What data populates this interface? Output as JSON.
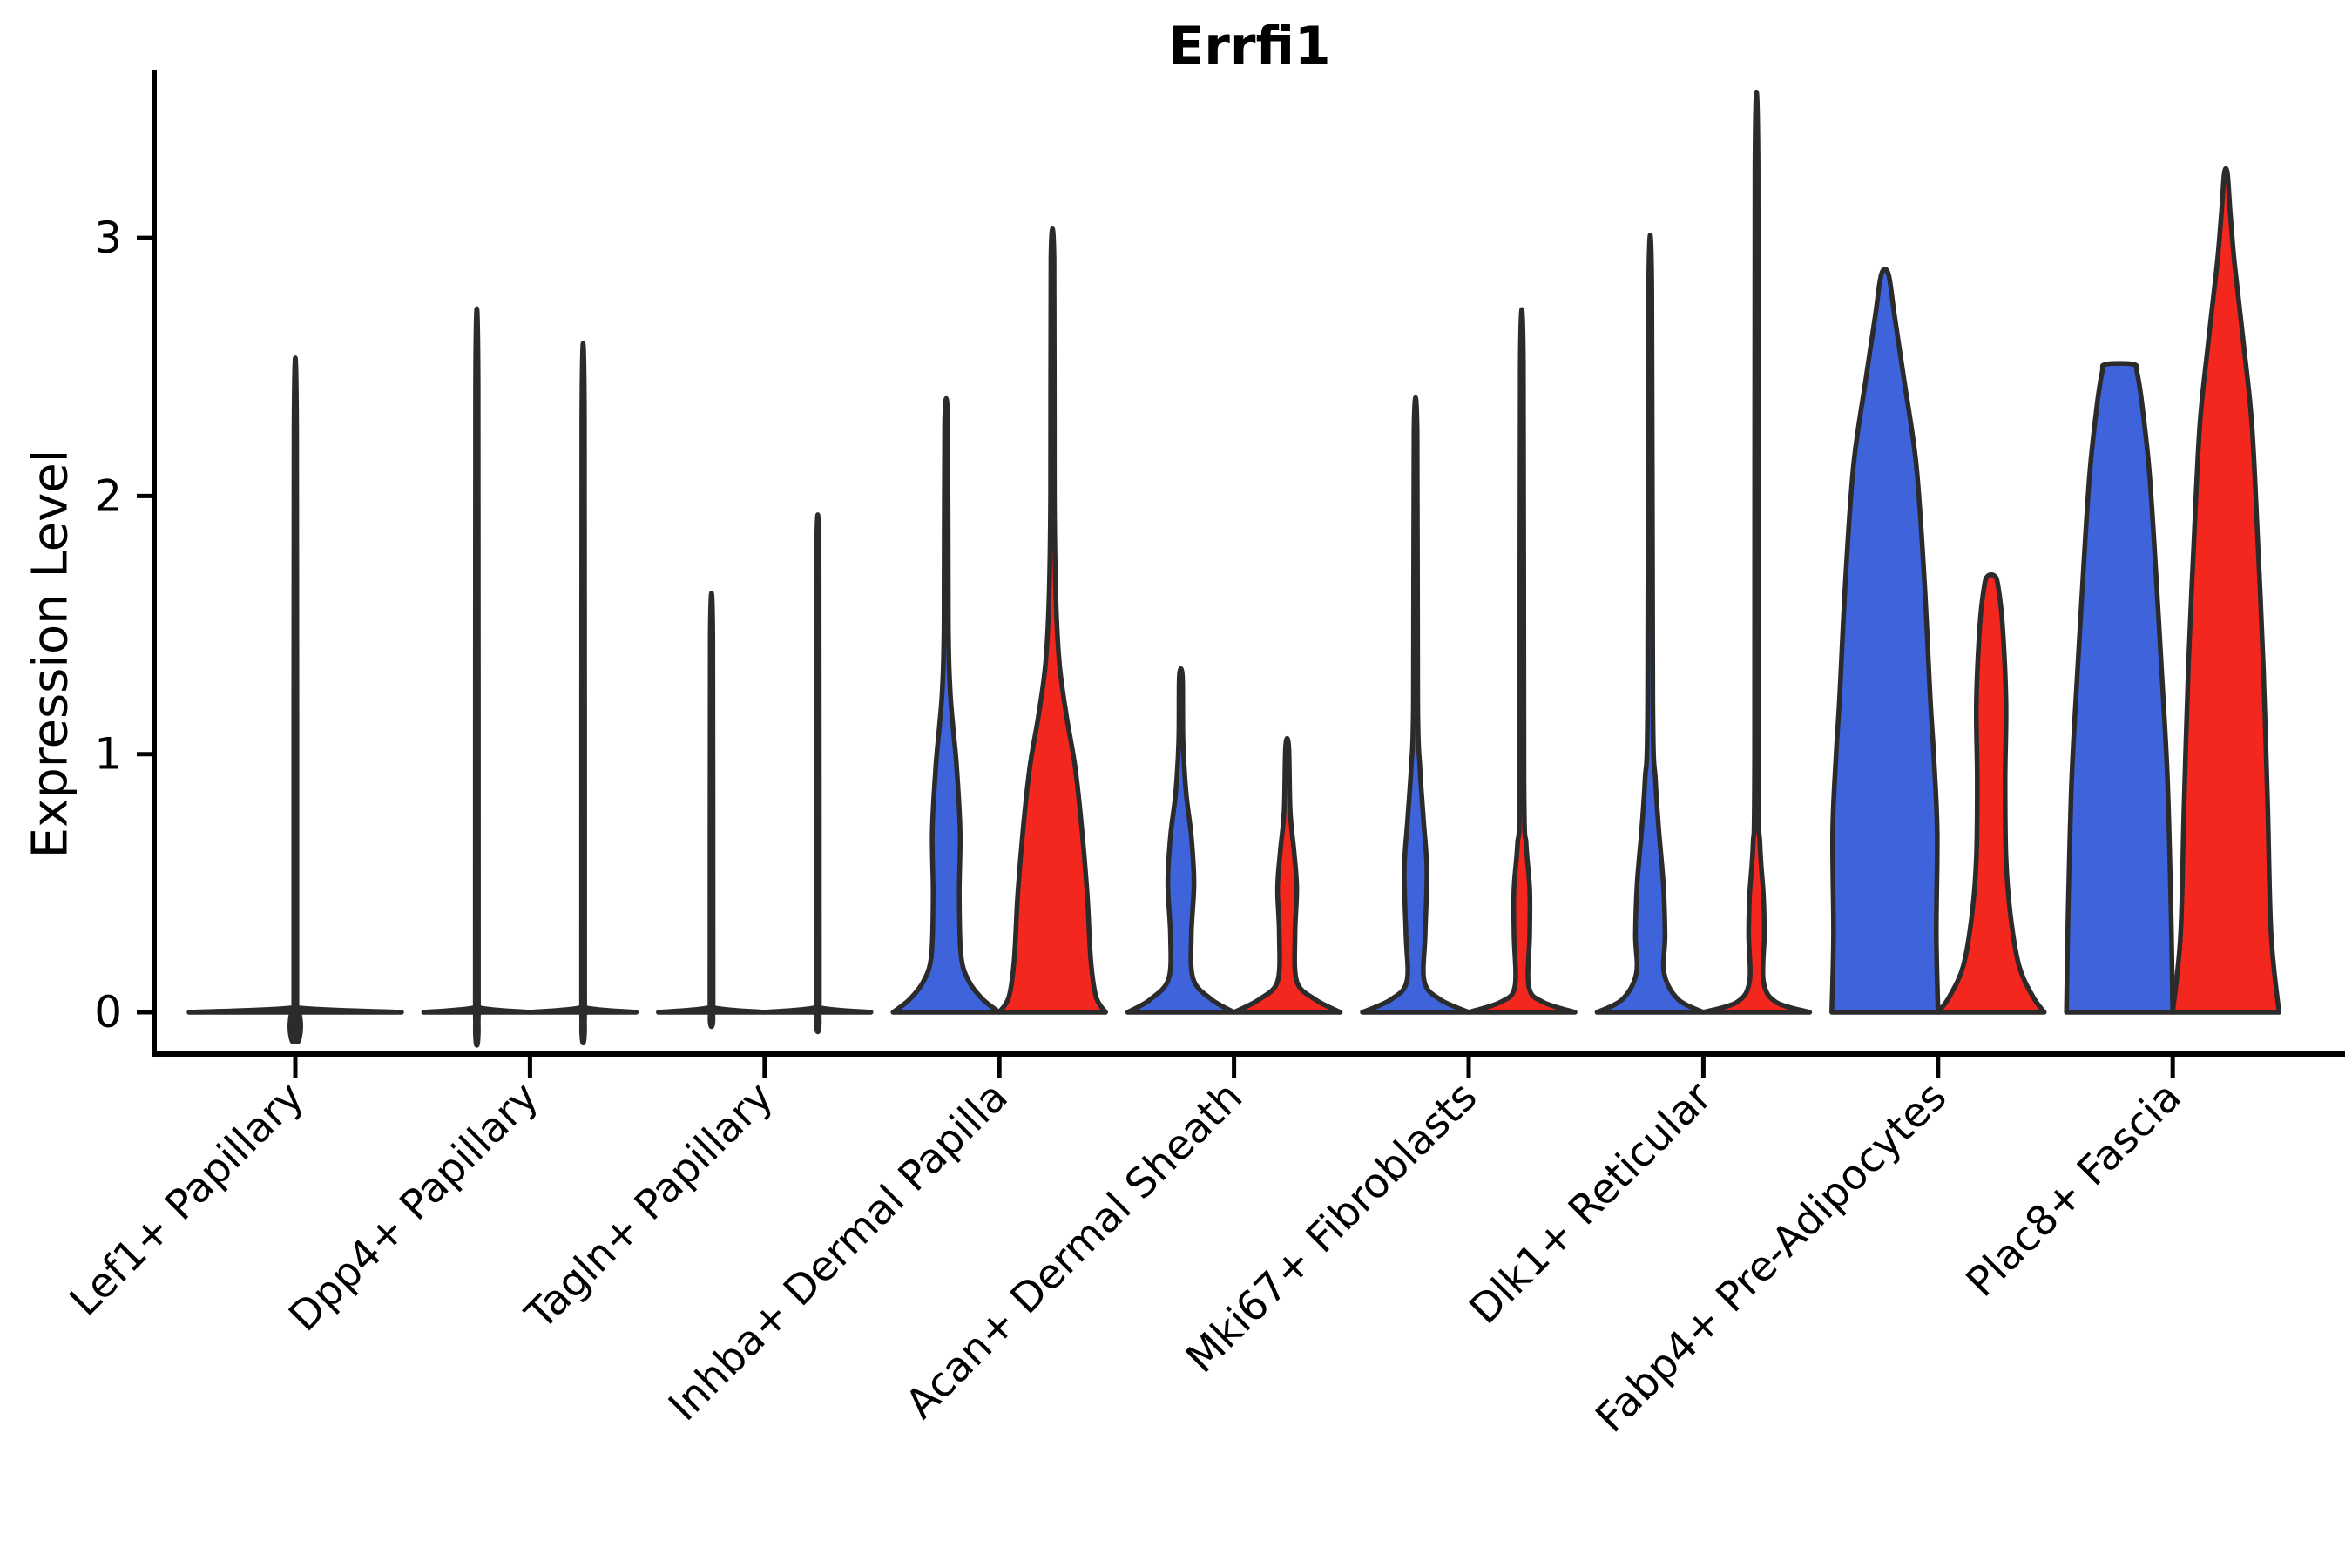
{
  "title": "Errfi1",
  "y_axis": {
    "label": "Expression Level",
    "tick_labels": [
      "0",
      "1",
      "2",
      "3"
    ]
  },
  "colors": {
    "blue_fill": "#3e63db",
    "red_fill": "#f3271e",
    "violin_outline": "#2b2b2b",
    "axis": "#000000",
    "background": "#ffffff"
  },
  "chart_data": {
    "type": "violin",
    "title": "Errfi1",
    "xlabel": "",
    "ylabel": "Expression Level",
    "yticks": [
      0,
      1,
      2,
      3
    ],
    "ylim": [
      -0.16,
      3.45
    ],
    "grid": false,
    "legend_position": "none",
    "series_names": [
      "blue",
      "red"
    ],
    "categories": [
      "Lef1+ Papillary",
      "Dpp4+ Papillary",
      "Tagln+ Papillary",
      "Inhba+ Dermal Papilla",
      "Acan+ Dermal Sheath",
      "Mki67+ Fibroblasts",
      "Dlk1+ Reticular",
      "Fabp4+ Pre-Adipocytes",
      "Plac8+ Fascia"
    ],
    "max_expression": {
      "blue": [
        2.26,
        2.43,
        1.45,
        2.28,
        1.3,
        2.25,
        2.81,
        2.86,
        2.51
      ],
      "red": [
        null,
        2.31,
        1.72,
        2.92,
        1.03,
        2.52,
        3.28,
        1.69,
        3.25
      ]
    },
    "violins": [
      {
        "category": "Lef1+ Papillary",
        "layout": "single",
        "blue": {
          "max": 2.26,
          "profile": [
            [
              0,
              122
            ],
            [
              0.018,
              3
            ],
            [
              0.06,
              1.8
            ],
            [
              2.26,
              1.5
            ]
          ]
        },
        "red": null
      },
      {
        "category": "Dpp4+ Papillary",
        "layout": "pair",
        "blue": {
          "max": 2.43,
          "profile": [
            [
              0,
              61
            ],
            [
              0.018,
              3
            ],
            [
              0.06,
              1.8
            ],
            [
              2.43,
              1.5
            ]
          ]
        },
        "red": {
          "max": 2.31,
          "profile": [
            [
              0,
              61
            ],
            [
              0.018,
              3
            ],
            [
              0.06,
              1.8
            ],
            [
              2.31,
              1.5
            ]
          ]
        }
      },
      {
        "category": "Tagln+ Papillary",
        "layout": "pair",
        "blue": {
          "max": 1.45,
          "profile": [
            [
              0,
              61
            ],
            [
              0.018,
              3
            ],
            [
              0.06,
              1.8
            ],
            [
              1.45,
              1.5
            ]
          ]
        },
        "red": {
          "max": 1.72,
          "profile": [
            [
              0,
              61
            ],
            [
              0.018,
              3
            ],
            [
              0.06,
              1.8
            ],
            [
              1.72,
              1.5
            ]
          ]
        }
      },
      {
        "category": "Inhba+ Dermal Papilla",
        "layout": "pair",
        "blue": {
          "max": 2.28,
          "profile": [
            [
              0,
              61
            ],
            [
              0.05,
              42
            ],
            [
              0.12,
              26
            ],
            [
              0.22,
              17
            ],
            [
              0.45,
              15
            ],
            [
              0.7,
              16
            ],
            [
              0.95,
              12
            ],
            [
              1.1,
              8
            ],
            [
              1.25,
              4.5
            ],
            [
              1.5,
              2.5
            ],
            [
              2.28,
              1.8
            ]
          ]
        },
        "red": {
          "max": 2.92,
          "profile": [
            [
              0,
              61
            ],
            [
              0.06,
              50
            ],
            [
              0.2,
              44
            ],
            [
              0.45,
              40
            ],
            [
              0.7,
              34
            ],
            [
              0.95,
              26
            ],
            [
              1.15,
              16
            ],
            [
              1.35,
              8
            ],
            [
              1.6,
              4
            ],
            [
              2.0,
              2.2
            ],
            [
              2.92,
              1.8
            ]
          ]
        }
      },
      {
        "category": "Acan+ Dermal Sheath",
        "layout": "pair",
        "blue": {
          "max": 1.3,
          "profile": [
            [
              0,
              61
            ],
            [
              0.05,
              35
            ],
            [
              0.13,
              14
            ],
            [
              0.3,
              12
            ],
            [
              0.5,
              15
            ],
            [
              0.68,
              12
            ],
            [
              0.85,
              6
            ],
            [
              1.05,
              2.5
            ],
            [
              1.3,
              1.8
            ]
          ]
        },
        "red": {
          "max": 1.03,
          "profile": [
            [
              0,
              61
            ],
            [
              0.05,
              32
            ],
            [
              0.12,
              11
            ],
            [
              0.3,
              9
            ],
            [
              0.48,
              11
            ],
            [
              0.62,
              8
            ],
            [
              0.78,
              3.5
            ],
            [
              1.03,
              1.8
            ]
          ]
        }
      },
      {
        "category": "Mki67+ Fibroblasts",
        "layout": "pair",
        "blue": {
          "max": 2.25,
          "profile": [
            [
              0,
              61
            ],
            [
              0.05,
              28
            ],
            [
              0.12,
              10
            ],
            [
              0.3,
              11
            ],
            [
              0.55,
              13
            ],
            [
              0.75,
              9
            ],
            [
              0.95,
              5
            ],
            [
              1.2,
              2.5
            ],
            [
              2.25,
              1.8
            ]
          ]
        },
        "red": {
          "max": 2.52,
          "profile": [
            [
              0,
              61
            ],
            [
              0.04,
              24
            ],
            [
              0.1,
              8
            ],
            [
              0.3,
              9
            ],
            [
              0.48,
              9
            ],
            [
              0.65,
              5
            ],
            [
              0.9,
              2.5
            ],
            [
              2.52,
              1.8
            ]
          ]
        }
      },
      {
        "category": "Dlk1+ Reticular",
        "layout": "pair",
        "blue": {
          "max": 2.81,
          "profile": [
            [
              0,
              61
            ],
            [
              0.05,
              32
            ],
            [
              0.15,
              16
            ],
            [
              0.3,
              17
            ],
            [
              0.5,
              15
            ],
            [
              0.7,
              10
            ],
            [
              0.9,
              6
            ],
            [
              1.2,
              3
            ],
            [
              2.81,
              1.8
            ]
          ]
        },
        "red": {
          "max": 3.28,
          "profile": [
            [
              0,
              61
            ],
            [
              0.04,
              22
            ],
            [
              0.12,
              8
            ],
            [
              0.3,
              9
            ],
            [
              0.45,
              8
            ],
            [
              0.65,
              4
            ],
            [
              1.0,
              2.2
            ],
            [
              3.28,
              1.8
            ]
          ]
        }
      },
      {
        "category": "Fabp4+ Pre-Adipocytes",
        "layout": "pair",
        "blue": {
          "max": 2.86,
          "profile": [
            [
              0,
              61
            ],
            [
              0.3,
              59
            ],
            [
              0.7,
              60
            ],
            [
              1.0,
              56
            ],
            [
              1.22,
              52
            ],
            [
              1.69,
              45
            ],
            [
              2.12,
              36
            ],
            [
              2.45,
              22
            ],
            [
              2.7,
              11
            ],
            [
              2.86,
              4
            ]
          ]
        },
        "red": {
          "max": 1.69,
          "profile": [
            [
              0,
              61
            ],
            [
              0.06,
              48
            ],
            [
              0.18,
              32
            ],
            [
              0.38,
              22
            ],
            [
              0.6,
              17
            ],
            [
              0.9,
              16
            ],
            [
              1.2,
              17
            ],
            [
              1.5,
              13
            ],
            [
              1.65,
              8
            ],
            [
              1.69,
              4
            ]
          ]
        }
      },
      {
        "category": "Plac8+ Fascia",
        "layout": "pair",
        "blue": {
          "max": 2.51,
          "profile": [
            [
              0,
              61
            ],
            [
              0.4,
              59
            ],
            [
              0.9,
              55
            ],
            [
              1.34,
              48
            ],
            [
              1.8,
              40
            ],
            [
              2.1,
              34
            ],
            [
              2.35,
              26
            ],
            [
              2.48,
              20
            ],
            [
              2.51,
              16
            ]
          ]
        },
        "red": {
          "max": 3.25,
          "profile": [
            [
              0,
              61
            ],
            [
              0.3,
              52
            ],
            [
              0.8,
              48
            ],
            [
              1.34,
              43
            ],
            [
              1.8,
              37
            ],
            [
              2.27,
              30
            ],
            [
              2.6,
              20
            ],
            [
              2.9,
              10
            ],
            [
              3.1,
              5
            ],
            [
              3.25,
              1.8
            ]
          ]
        }
      }
    ]
  }
}
